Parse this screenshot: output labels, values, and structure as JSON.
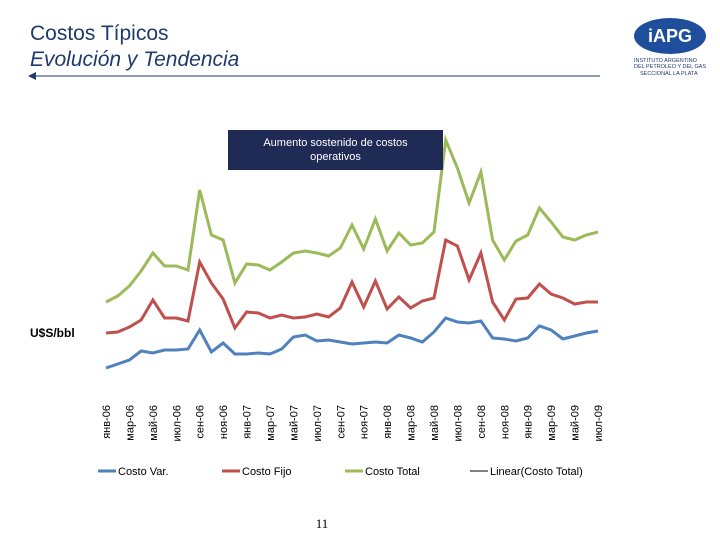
{
  "header": {
    "title": "Costos Típicos",
    "subtitle": "Evolución y Tendencia"
  },
  "logo": {
    "mark": "iAPG",
    "name_1": "INSTITUTO ARGENTINO",
    "name_2": "DEL PETROLEO Y DEL GAS",
    "name_3": "SECCIONAL LA PLATA"
  },
  "chart_data": {
    "type": "line",
    "annotation": "Aumento sostenido de costos operativos",
    "y_label": "U$S/bbl",
    "ylim": [
      0,
      130
    ],
    "categories": [
      "янв-06",
      null,
      "мар-06",
      null,
      "май-06",
      null,
      "июл-06",
      null,
      "сен-06",
      null,
      "ноя-06",
      null,
      "янв-07",
      null,
      "мар-07",
      null,
      "май-07",
      null,
      "июл-07",
      null,
      "сен-07",
      null,
      "ноя-07",
      null,
      "янв-08",
      null,
      "мар-08",
      null,
      "май-08",
      null,
      "июл-08",
      null,
      "сен-08",
      null,
      "ноя-08",
      null,
      "янв-09",
      null,
      "мар-09",
      null,
      "май-09",
      null,
      "июл-09"
    ],
    "series": [
      {
        "name": "Costo Var.",
        "color": "#4f81bd",
        "values": [
          13.5,
          15.5,
          17.5,
          22,
          21,
          22.5,
          22.5,
          23,
          32.5,
          21.5,
          26,
          20.5,
          20.5,
          21,
          20.5,
          23,
          29,
          30,
          27,
          27.5,
          26.5,
          25.5,
          26,
          26.5,
          26,
          30,
          28.5,
          26.5,
          31.5,
          38.5,
          36.5,
          36,
          37,
          28.5,
          28,
          27,
          28.5,
          34.5,
          32.5,
          28,
          29.5,
          31,
          32
        ]
      },
      {
        "name": "Costo Fijo",
        "color": "#c0504d",
        "values": [
          31,
          31.5,
          34,
          37.5,
          47.5,
          38.5,
          38.5,
          37,
          66.5,
          56,
          48,
          33.5,
          41.5,
          41,
          38.5,
          40,
          38.5,
          39,
          40.5,
          39,
          43.5,
          56.5,
          44,
          57,
          43,
          49,
          43.5,
          47,
          48.5,
          77.5,
          74.5,
          57.5,
          71,
          46.5,
          37.5,
          48,
          48.5,
          55.5,
          50.5,
          48.5,
          45.5,
          46.5,
          46.5
        ]
      },
      {
        "name": "Costo Total",
        "color": "#9bbb59",
        "values": [
          46.5,
          49.5,
          54.5,
          62,
          71,
          64.5,
          64.5,
          62.5,
          102.5,
          80,
          77.5,
          56,
          65.5,
          65,
          62.5,
          66.5,
          71,
          72,
          71,
          69.5,
          73.5,
          85,
          73,
          88,
          72,
          81,
          75,
          76,
          81.5,
          127.5,
          113.5,
          96,
          111.5,
          77.5,
          67.5,
          77,
          80,
          93.5,
          86.5,
          79,
          77.5,
          80,
          81.5
        ]
      }
    ],
    "trendline": {
      "name": "Linear(Costo Total)",
      "color": "#000000"
    }
  },
  "page_number": "11"
}
